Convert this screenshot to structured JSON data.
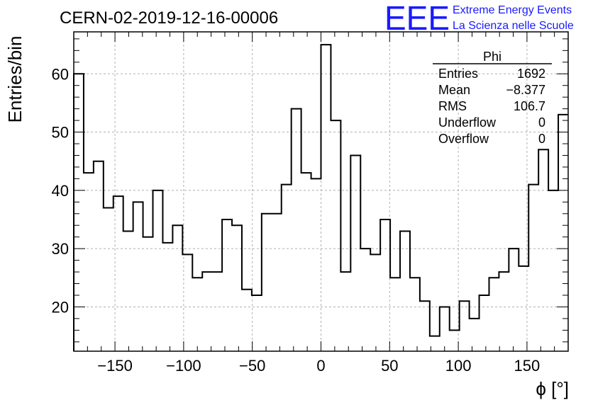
{
  "header": {
    "title": "CERN-02-2019-12-16-00006",
    "brand_logo": "EEE",
    "brand_line1": "Extreme Energy Events",
    "brand_line2": "La Scienza nelle Scuole",
    "brand_color": "#1a1aff"
  },
  "stats_box": {
    "name": "Phi",
    "rows": [
      {
        "label": "Entries",
        "value": "1692"
      },
      {
        "label": "Mean",
        "value": "−8.377"
      },
      {
        "label": "RMS",
        "value": "106.7"
      },
      {
        "label": "Underflow",
        "value": "0"
      },
      {
        "label": "Overflow",
        "value": "0"
      }
    ]
  },
  "chart_data": {
    "type": "bar",
    "style": "step-histogram",
    "title": "CERN-02-2019-12-16-00006",
    "xlabel": "ϕ [°]",
    "ylabel": "Entries/bin",
    "xlim": [
      -180,
      180
    ],
    "ylim": [
      12.4,
      67.2
    ],
    "bin_width": 7.2,
    "x_ticks": [
      -150,
      -100,
      -50,
      0,
      50,
      100,
      150
    ],
    "x_tick_labels": [
      "−150",
      "−100",
      "−50",
      "0",
      "50",
      "100",
      "150"
    ],
    "y_ticks": [
      20,
      30,
      40,
      50,
      60
    ],
    "y_tick_labels": [
      "20",
      "30",
      "40",
      "50",
      "60"
    ],
    "grid": true,
    "values": [
      60,
      43,
      45,
      37,
      39,
      33,
      38,
      32,
      40,
      31,
      34,
      29,
      25,
      26,
      26,
      35,
      34,
      23,
      22,
      36,
      36,
      41,
      54,
      43,
      42,
      65,
      52,
      26,
      46,
      30,
      29,
      35,
      25,
      33,
      25,
      21,
      15,
      20,
      16,
      21,
      18,
      22,
      25,
      26,
      30,
      27,
      41,
      47,
      40,
      53
    ]
  }
}
